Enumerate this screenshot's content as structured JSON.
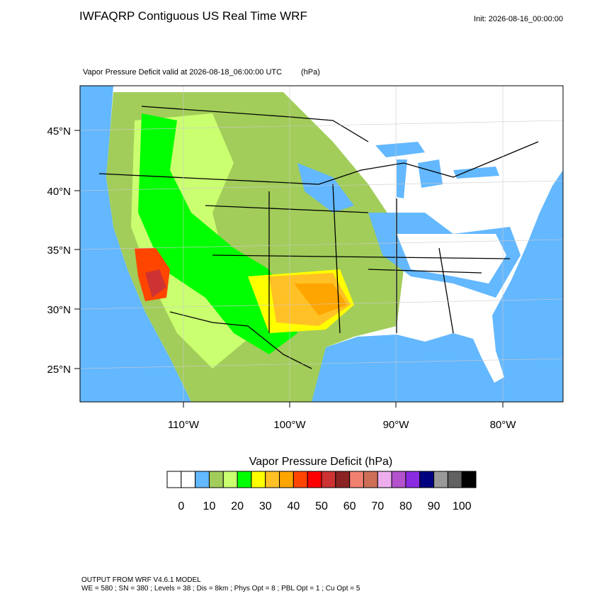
{
  "header": {
    "title": "IWFAQRP Contiguous US Real Time WRF",
    "init": "Init: 2026-08-16_00:00:00",
    "subtitle": "Vapor Pressure Deficit valid at 2026-08-18_06:00:00 UTC",
    "units": "(hPa)"
  },
  "map": {
    "lat_labels": [
      "45°N",
      "40°N",
      "35°N",
      "30°N",
      "25°N"
    ],
    "lon_labels": [
      "110°W",
      "100°W",
      "90°W",
      "80°W"
    ]
  },
  "colorbar": {
    "title": "Vapor Pressure Deficit  (hPa)",
    "levels": [
      0,
      5,
      10,
      15,
      20,
      25,
      30,
      35,
      40,
      45,
      50,
      55,
      60,
      65,
      70,
      75,
      80,
      85,
      90,
      95,
      100
    ],
    "colors": [
      "#ffffff",
      "#ffffff",
      "#63b8ff",
      "#a2cd5a",
      "#caff70",
      "#00ff00",
      "#ffff00",
      "#ffc125",
      "#ffa500",
      "#ff4500",
      "#ff0000",
      "#cd3333",
      "#8b2323",
      "#f08070",
      "#cd6f57",
      "#eeaeee",
      "#b452cd",
      "#8a2be2",
      "#000080",
      "#999999",
      "#616161",
      "#000000"
    ],
    "ticks": [
      0,
      10,
      20,
      30,
      40,
      50,
      60,
      70,
      80,
      90,
      100
    ]
  },
  "footer": {
    "line1": "OUTPUT FROM WRF V4.6.1 MODEL",
    "line2": "WE = 580 ; SN = 380 ; Levels = 38 ; Dis = 8km ; Phys Opt = 8 ; PBL Opt = 1 ; Cu Opt = 5"
  }
}
